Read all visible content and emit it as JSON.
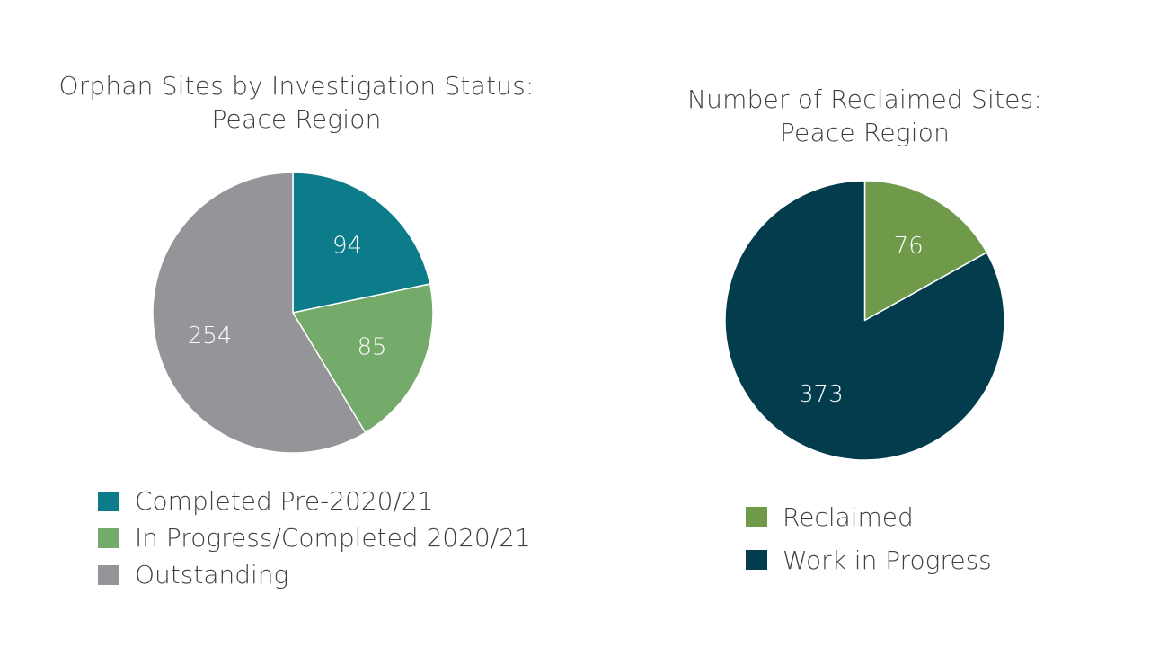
{
  "chart_data": [
    {
      "type": "pie",
      "title_lines": [
        "Orphan Sites by Investigation Status:",
        "Peace Region"
      ],
      "categories": [
        "Completed Pre-2020/21",
        "In Progress/Completed 2020/21",
        "Outstanding"
      ],
      "values": [
        94,
        85,
        254
      ],
      "colors": [
        "#0c7b8a",
        "#74ab6b",
        "#939598"
      ],
      "data_labels": [
        "94",
        "85",
        "254"
      ],
      "legend_position": "bottom",
      "start_angle": "12 o'clock, clockwise"
    },
    {
      "type": "pie",
      "title_lines": [
        "Number of Reclaimed Sites:",
        "Peace Region"
      ],
      "categories": [
        "Reclaimed",
        "Work in Progress"
      ],
      "values": [
        76,
        373
      ],
      "colors": [
        "#6f9a4a",
        "#033d4d"
      ],
      "data_labels": [
        "76",
        "373"
      ],
      "legend_position": "bottom",
      "start_angle": "12 o'clock, clockwise"
    }
  ]
}
